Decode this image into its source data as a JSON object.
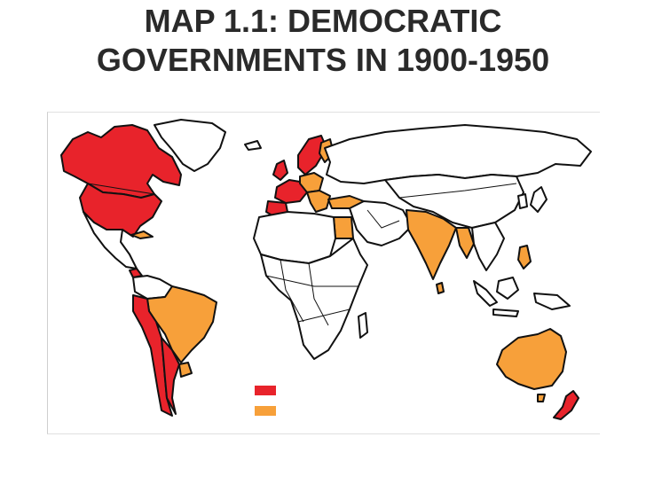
{
  "slide": {
    "title_line1": "MAP 1.1: DEMOCRATIC",
    "title_line2": "GOVERNMENTS IN 1900-1950"
  },
  "colors": {
    "red": "#e8232b",
    "orange": "#f7a03a",
    "land": "#ffffff",
    "border": "#111111"
  },
  "legend": {
    "entries": [
      {
        "color": "#e8232b"
      },
      {
        "color": "#f7a03a"
      }
    ]
  }
}
